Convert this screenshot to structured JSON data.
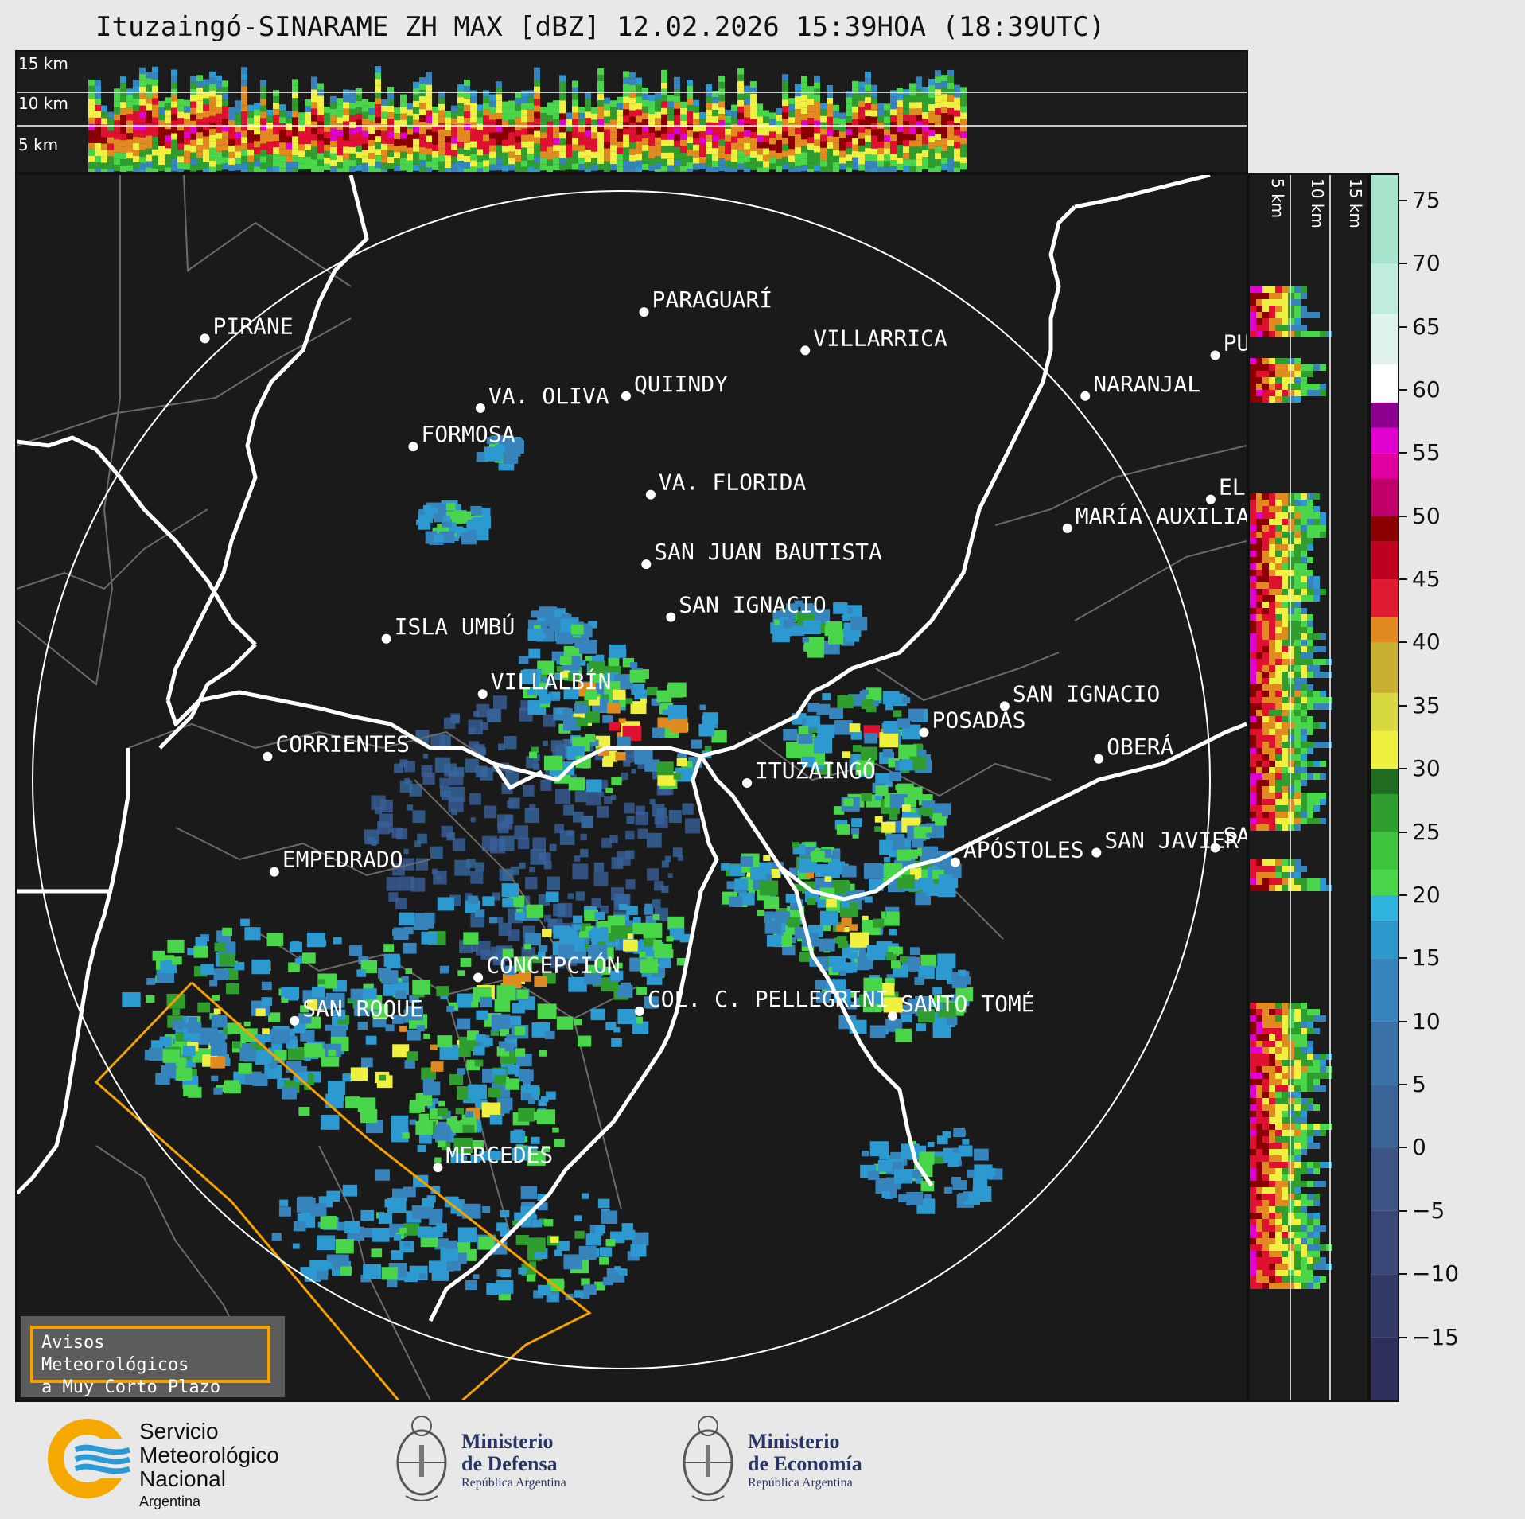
{
  "title": "Ituzaingó-SINARAME ZH MAX [dBZ] 12.02.2026 15:39HOA (18:39UTC)",
  "top_section": {
    "altitude_labels": [
      "15 km",
      "10 km",
      "5 km"
    ]
  },
  "side_section": {
    "altitude_labels": [
      "5 km",
      "10 km",
      "15 km"
    ]
  },
  "colorbar": {
    "ticks": [
      "75",
      "70",
      "65",
      "60",
      "55",
      "50",
      "45",
      "40",
      "35",
      "30",
      "25",
      "20",
      "15",
      "10",
      "5",
      "0",
      "−5",
      "−10",
      "−15"
    ],
    "range": [
      -20,
      77
    ],
    "colors": {
      "very_low": "#3a3a6e",
      "low": "#3f6fb0",
      "blue": "#2c9ad0",
      "cyan": "#2fb4dd",
      "green_light": "#4ad64a",
      "green_dark": "#1f6b1f",
      "yellow": "#f0f040",
      "orange": "#e08a20",
      "red": "#e01030",
      "dark_red": "#8a0000",
      "magenta": "#e000d0",
      "purple": "#8c0090",
      "white": "#ffffff",
      "mint": "#8fdcc0"
    }
  },
  "map": {
    "cities": [
      {
        "name": "PIRANE",
        "lon": -59.11,
        "lat": -25.73
      },
      {
        "name": "PARAGUARÍ",
        "lon": -57.15,
        "lat": -25.62
      },
      {
        "name": "VILLARRICA",
        "lon": -56.43,
        "lat": -25.78
      },
      {
        "name": "VA. OLIVA",
        "lon": -57.88,
        "lat": -26.02
      },
      {
        "name": "QUIINDY",
        "lon": -57.23,
        "lat": -25.97
      },
      {
        "name": "NARANJAL",
        "lon": -55.18,
        "lat": -25.97
      },
      {
        "name": "FORMOSA",
        "lon": -58.18,
        "lat": -26.18
      },
      {
        "name": "VA. FLORIDA",
        "lon": -57.12,
        "lat": -26.38
      },
      {
        "name": "ELDORADO",
        "lon": -54.62,
        "lat": -26.4
      },
      {
        "name": "MARÍA AUXILIADORA",
        "lon": -55.26,
        "lat": -26.52
      },
      {
        "name": "SAN JUAN BAUTISTA",
        "lon": -57.14,
        "lat": -26.67
      },
      {
        "name": "SAN IGNACIO",
        "lon": -57.03,
        "lat": -26.89
      },
      {
        "name": "ISLA UMBÚ",
        "lon": -58.3,
        "lat": -26.98
      },
      {
        "name": "VILLALBÍN",
        "lon": -57.87,
        "lat": -27.21
      },
      {
        "name": "SAN IGNACIO",
        "lon": -55.54,
        "lat": -27.26
      },
      {
        "name": "POSADAS",
        "lon": -55.9,
        "lat": -27.37
      },
      {
        "name": "CORRIENTES",
        "lon": -58.83,
        "lat": -27.47
      },
      {
        "name": "ITUZAINGÓ",
        "lon": -56.69,
        "lat": -27.58
      },
      {
        "name": "OBERÁ",
        "lon": -55.12,
        "lat": -27.48
      },
      {
        "name": "APÓSTOLES",
        "lon": -55.76,
        "lat": -27.91
      },
      {
        "name": "SAN JAVIER",
        "lon": -55.13,
        "lat": -27.87
      },
      {
        "name": "EMPEDRADO",
        "lon": -58.8,
        "lat": -27.95
      },
      {
        "name": "CONCEPCIÓN",
        "lon": -57.89,
        "lat": -28.39
      },
      {
        "name": "COL. C. PELLEGRINI",
        "lon": -57.17,
        "lat": -28.53
      },
      {
        "name": "SANTO TOMÉ",
        "lon": -56.04,
        "lat": -28.55
      },
      {
        "name": "SAN ROQUE",
        "lon": -58.71,
        "lat": -28.57
      },
      {
        "name": "MERCEDES",
        "lon": -58.07,
        "lat": -29.18
      },
      {
        "name": "PUERTO",
        "lon": -54.6,
        "lat": -25.8
      },
      {
        "name": "SAN",
        "lon": -54.6,
        "lat": -27.85
      }
    ],
    "warning_box": {
      "line1": "Avisos Meteorológicos",
      "line2": "a Muy Corto Plazo"
    }
  },
  "logos": {
    "smn": {
      "line1": "Servicio",
      "line2": "Meteorológico",
      "line3": "Nacional",
      "line4": "Argentina"
    },
    "defensa": {
      "line1": "Ministerio",
      "line2": "de Defensa",
      "line3": "República Argentina"
    },
    "economia": {
      "line1": "Ministerio",
      "line2": "de Economía",
      "line3": "República Argentina"
    }
  }
}
